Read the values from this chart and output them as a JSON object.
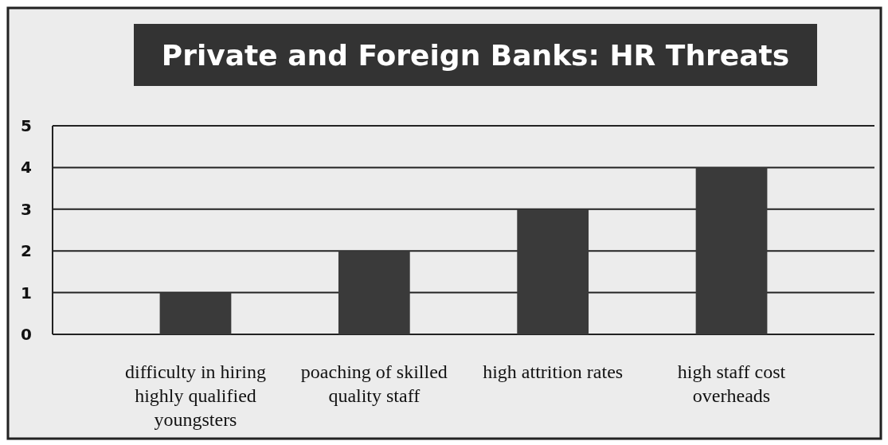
{
  "chart_data": {
    "type": "bar",
    "title": "Private and Foreign Banks: HR Threats",
    "categories": [
      "difficulty in hiring highly qualified youngsters",
      "poaching of skilled quality staff",
      "high attrition rates",
      "high staff cost overheads"
    ],
    "values": [
      1,
      2,
      3,
      4
    ],
    "color": "#3a3a3a",
    "ylim": [
      0,
      5
    ],
    "yticks": [
      0,
      1,
      2,
      3,
      4,
      5
    ],
    "grid": "y"
  }
}
